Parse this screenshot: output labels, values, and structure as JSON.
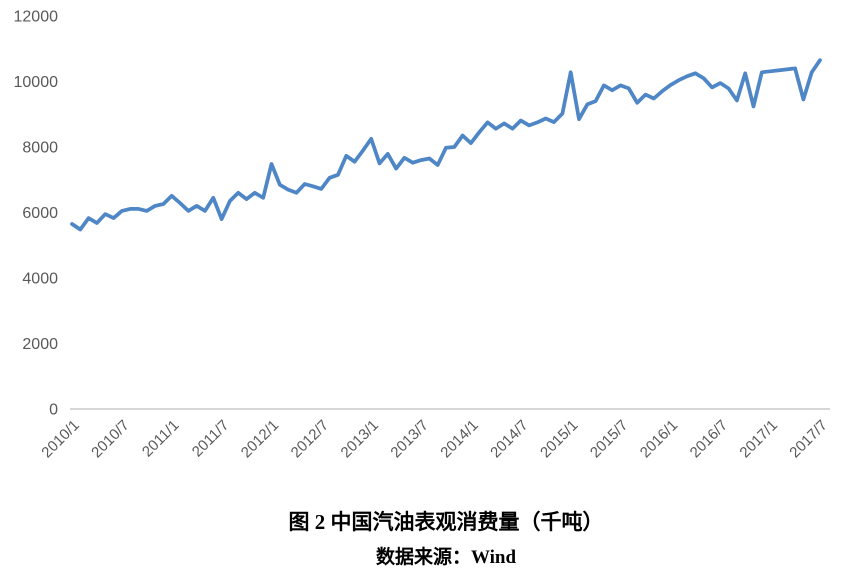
{
  "caption": {
    "line1": "图 2 中国汽油表观消费量（千吨）",
    "line2": "数据来源：Wind"
  },
  "chart_data": {
    "type": "line",
    "title": "图 2 中国汽油表观消费量（千吨）",
    "source_note": "数据来源：Wind",
    "ylabel": "",
    "xlabel": "",
    "ylim": [
      0,
      12000
    ],
    "y_ticks": [
      0,
      2000,
      4000,
      6000,
      8000,
      10000,
      12000
    ],
    "x_tick_every": 6,
    "grid": false,
    "legend": "none",
    "line_color": "#4E86C6",
    "axis_line_color": "#D6D6D6",
    "tick_label_color": "#595959",
    "x": [
      "2010/1",
      "2010/2",
      "2010/3",
      "2010/4",
      "2010/5",
      "2010/6",
      "2010/7",
      "2010/8",
      "2010/9",
      "2010/10",
      "2010/11",
      "2010/12",
      "2011/1",
      "2011/2",
      "2011/3",
      "2011/4",
      "2011/5",
      "2011/6",
      "2011/7",
      "2011/8",
      "2011/9",
      "2011/10",
      "2011/11",
      "2011/12",
      "2012/1",
      "2012/2",
      "2012/3",
      "2012/4",
      "2012/5",
      "2012/6",
      "2012/7",
      "2012/8",
      "2012/9",
      "2012/10",
      "2012/11",
      "2012/12",
      "2013/1",
      "2013/2",
      "2013/3",
      "2013/4",
      "2013/5",
      "2013/6",
      "2013/7",
      "2013/8",
      "2013/9",
      "2013/10",
      "2013/11",
      "2013/12",
      "2014/1",
      "2014/2",
      "2014/3",
      "2014/4",
      "2014/5",
      "2014/6",
      "2014/7",
      "2014/8",
      "2014/9",
      "2014/10",
      "2014/11",
      "2014/12",
      "2015/1",
      "2015/2",
      "2015/3",
      "2015/4",
      "2015/5",
      "2015/6",
      "2015/7",
      "2015/8",
      "2015/9",
      "2015/10",
      "2015/11",
      "2015/12",
      "2016/1",
      "2016/2",
      "2016/3",
      "2016/4",
      "2016/5",
      "2016/6",
      "2016/7",
      "2016/8",
      "2016/9",
      "2016/10",
      "2016/11",
      "2016/12",
      "2017/1",
      "2017/2",
      "2017/3",
      "2017/4",
      "2017/5",
      "2017/6",
      "2017/7"
    ],
    "series": [
      {
        "name": "中国汽油表观消费量",
        "values": [
          5650,
          5480,
          5830,
          5680,
          5950,
          5830,
          6050,
          6110,
          6110,
          6050,
          6200,
          6260,
          6510,
          6290,
          6050,
          6200,
          6050,
          6450,
          5800,
          6350,
          6600,
          6410,
          6600,
          6450,
          7480,
          6850,
          6700,
          6600,
          6870,
          6800,
          6720,
          7060,
          7150,
          7730,
          7550,
          7890,
          8250,
          7500,
          7790,
          7340,
          7670,
          7520,
          7600,
          7650,
          7450,
          7980,
          8000,
          8350,
          8120,
          8450,
          8750,
          8560,
          8720,
          8560,
          8810,
          8660,
          8750,
          8870,
          8760,
          9020,
          10280,
          8850,
          9300,
          9400,
          9880,
          9730,
          9880,
          9790,
          9350,
          9600,
          9480,
          9700,
          9890,
          10040,
          10160,
          10250,
          10100,
          9820,
          9950,
          9790,
          9420,
          10250,
          9240,
          10280,
          10310,
          10340,
          10370,
          10400,
          9450,
          10280,
          10650
        ]
      }
    ]
  }
}
